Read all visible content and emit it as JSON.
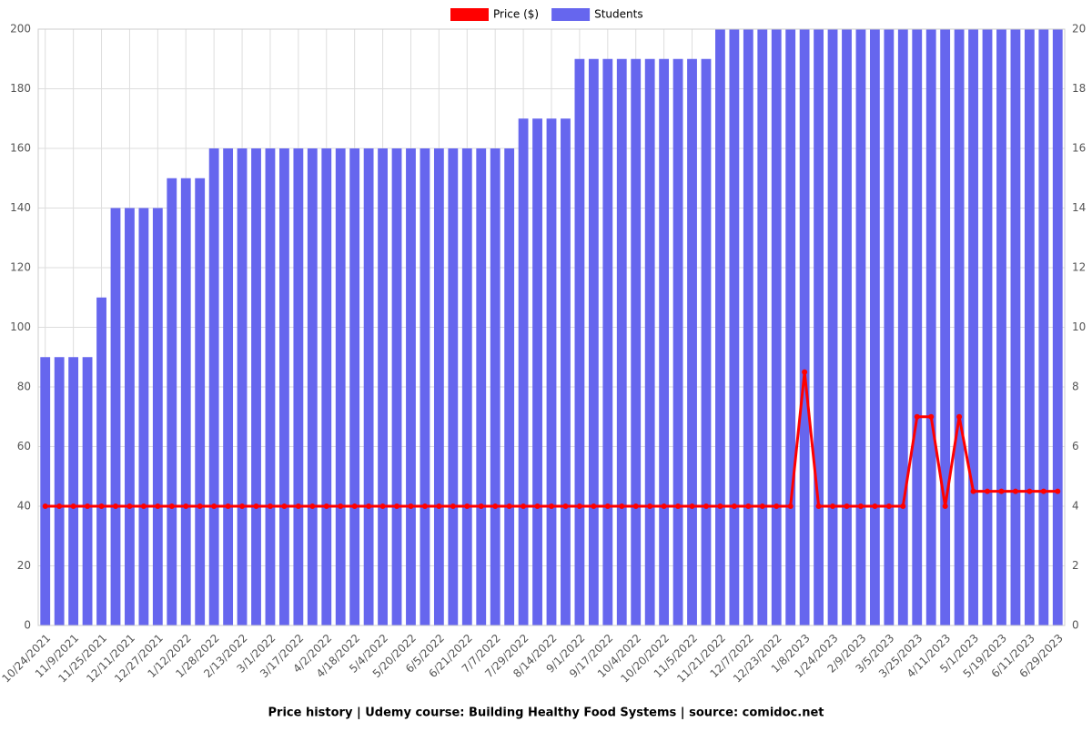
{
  "chart_data": {
    "type": "bar",
    "title": "Price history | Udemy course: Building Healthy Food Systems | source: comidoc.net",
    "categories": [
      "10/24/2021",
      null,
      "11/9/2021",
      null,
      "11/25/2021",
      null,
      "12/11/2021",
      null,
      "12/27/2021",
      null,
      "1/12/2022",
      null,
      "1/28/2022",
      null,
      "2/13/2022",
      null,
      "3/1/2022",
      null,
      "3/17/2022",
      null,
      "4/2/2022",
      null,
      "4/18/2022",
      null,
      "5/4/2022",
      null,
      "5/20/2022",
      null,
      "6/5/2022",
      null,
      "6/21/2022",
      null,
      "7/7/2022",
      null,
      "7/29/2022",
      null,
      "8/14/2022",
      null,
      "9/1/2022",
      null,
      "9/17/2022",
      null,
      "10/4/2022",
      null,
      "10/20/2022",
      null,
      "11/5/2022",
      null,
      "11/21/2022",
      null,
      "12/7/2022",
      null,
      "12/23/2022",
      null,
      "1/8/2023",
      null,
      "1/24/2023",
      null,
      "2/9/2023",
      null,
      "3/5/2023",
      null,
      "3/25/2023",
      null,
      "4/11/2023",
      null,
      "5/1/2023",
      null,
      "5/19/2023",
      null,
      "6/11/2023",
      null,
      "6/29/2023"
    ],
    "series": [
      {
        "name": "Price ($)",
        "type": "line",
        "color": "#ff0000",
        "axis": "y",
        "values": [
          40,
          40,
          40,
          40,
          40,
          40,
          40,
          40,
          40,
          40,
          40,
          40,
          40,
          40,
          40,
          40,
          40,
          40,
          40,
          40,
          40,
          40,
          40,
          40,
          40,
          40,
          40,
          40,
          40,
          40,
          40,
          40,
          40,
          40,
          40,
          40,
          40,
          40,
          40,
          40,
          40,
          40,
          40,
          40,
          40,
          40,
          40,
          40,
          40,
          40,
          40,
          40,
          40,
          40,
          85,
          40,
          40,
          40,
          40,
          40,
          40,
          40,
          70,
          70,
          40,
          70,
          45,
          45,
          45,
          45,
          45,
          45,
          45
        ]
      },
      {
        "name": "Students",
        "type": "bar",
        "color": "#6666ee",
        "axis": "y2",
        "values": [
          9,
          9,
          9,
          9,
          11,
          14,
          14,
          14,
          14,
          15,
          15,
          15,
          16,
          16,
          16,
          16,
          16,
          16,
          16,
          16,
          16,
          16,
          16,
          16,
          16,
          16,
          16,
          16,
          16,
          16,
          16,
          16,
          16,
          16,
          17,
          17,
          17,
          17,
          19,
          19,
          19,
          19,
          19,
          19,
          19,
          19,
          19,
          19,
          20,
          20,
          20,
          20,
          20,
          20,
          20,
          20,
          20,
          20,
          20,
          20,
          20,
          20,
          20,
          20,
          20,
          20,
          20,
          20,
          20,
          20,
          20,
          20,
          20
        ]
      }
    ],
    "ylim": [
      0,
      200
    ],
    "yticks": [
      0,
      20,
      40,
      60,
      80,
      100,
      120,
      140,
      160,
      180,
      200
    ],
    "y2lim": [
      0,
      20
    ],
    "y2ticks": [
      0,
      2,
      4,
      6,
      8,
      10,
      12,
      14,
      16,
      18,
      20
    ],
    "grid": true,
    "legend": "top"
  }
}
